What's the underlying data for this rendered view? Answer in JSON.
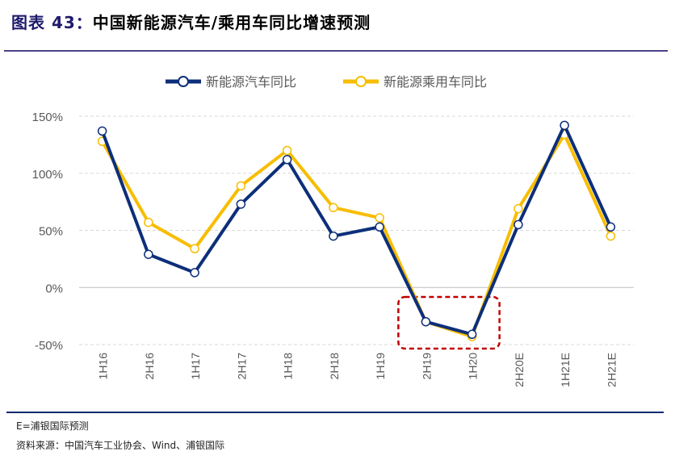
{
  "header": {
    "figure_label": "图表 43：",
    "title": "中国新能源汽车/乘用车同比增速预测"
  },
  "footer": {
    "note": "E=浦银国际预测",
    "source": "资料来源：中国汽车工业协会、Wind、浦银国际"
  },
  "chart_data": {
    "type": "line",
    "categories": [
      "1H16",
      "2H16",
      "1H17",
      "2H17",
      "1H18",
      "2H18",
      "1H19",
      "2H19",
      "1H20",
      "2H20E",
      "1H21E",
      "2H21E"
    ],
    "series": [
      {
        "name": "新能源汽车同比",
        "color": "#0d2f7a",
        "values": [
          137,
          29,
          13,
          73,
          112,
          45,
          53,
          -30,
          -41,
          55,
          142,
          53
        ]
      },
      {
        "name": "新能源乘用车同比",
        "color": "#f7bd00",
        "values": [
          128,
          57,
          34,
          89,
          120,
          70,
          61,
          -30,
          -43,
          69,
          134,
          45
        ]
      }
    ],
    "ylim": [
      -50,
      150
    ],
    "yticks": [
      "-50%",
      "0%",
      "50%",
      "100%",
      "150%"
    ],
    "ytick_values": [
      -50,
      0,
      50,
      100,
      150
    ],
    "grid": true,
    "legend": "top",
    "highlight": {
      "from": "2H19",
      "to": "1H20",
      "color": "#c00000",
      "style": "dashed"
    }
  }
}
